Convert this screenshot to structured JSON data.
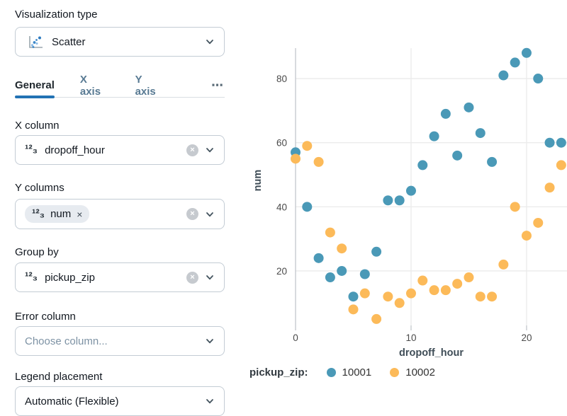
{
  "panel": {
    "viz_type_label": "Visualization type",
    "viz_type_value": "Scatter",
    "tabs": {
      "general": "General",
      "x_axis": "X axis",
      "y_axis": "Y axis",
      "more": "⋯"
    },
    "x_column": {
      "label": "X column",
      "value": "dropoff_hour",
      "type_icon": "¹²₃"
    },
    "y_columns": {
      "label": "Y columns",
      "chip_value": "num",
      "chip_remove": "×",
      "type_icon": "¹²₃"
    },
    "group_by": {
      "label": "Group by",
      "value": "pickup_zip",
      "type_icon": "¹²₃"
    },
    "error_column": {
      "label": "Error column",
      "placeholder": "Choose column..."
    },
    "legend_placement": {
      "label": "Legend placement",
      "value": "Automatic (Flexible)"
    }
  },
  "chart_data": {
    "type": "scatter",
    "title": "",
    "xlabel": "dropoff_hour",
    "ylabel": "num",
    "legend_title": "pickup_zip:",
    "legend_position": "bottom",
    "grid": true,
    "x": [
      0,
      1,
      2,
      3,
      4,
      5,
      6,
      7,
      8,
      9,
      10,
      11,
      12,
      13,
      14,
      15,
      16,
      17,
      18,
      19,
      20,
      21,
      22,
      23
    ],
    "series": [
      {
        "name": "10001",
        "color": "#4a99b7",
        "values": [
          57,
          40,
          24,
          18,
          20,
          12,
          19,
          26,
          42,
          42,
          45,
          53,
          62,
          69,
          56,
          71,
          63,
          54,
          81,
          85,
          88,
          80,
          60,
          60
        ]
      },
      {
        "name": "10002",
        "color": "#fcba59",
        "values": [
          55,
          59,
          54,
          32,
          27,
          8,
          13,
          5,
          12,
          10,
          13,
          17,
          14,
          14,
          16,
          18,
          12,
          12,
          22,
          40,
          31,
          35,
          46,
          53
        ]
      }
    ],
    "x_ticks": [
      0,
      10,
      20
    ],
    "y_ticks": [
      20,
      40,
      60,
      80
    ],
    "xlim": [
      0,
      23.5
    ],
    "ylim": [
      3,
      89.5
    ],
    "colors": {
      "accent_blue": "#2272b4",
      "grid": "#ebebeb",
      "axis": "#c2c7cc",
      "tick_text": "#4a4a4a"
    }
  }
}
